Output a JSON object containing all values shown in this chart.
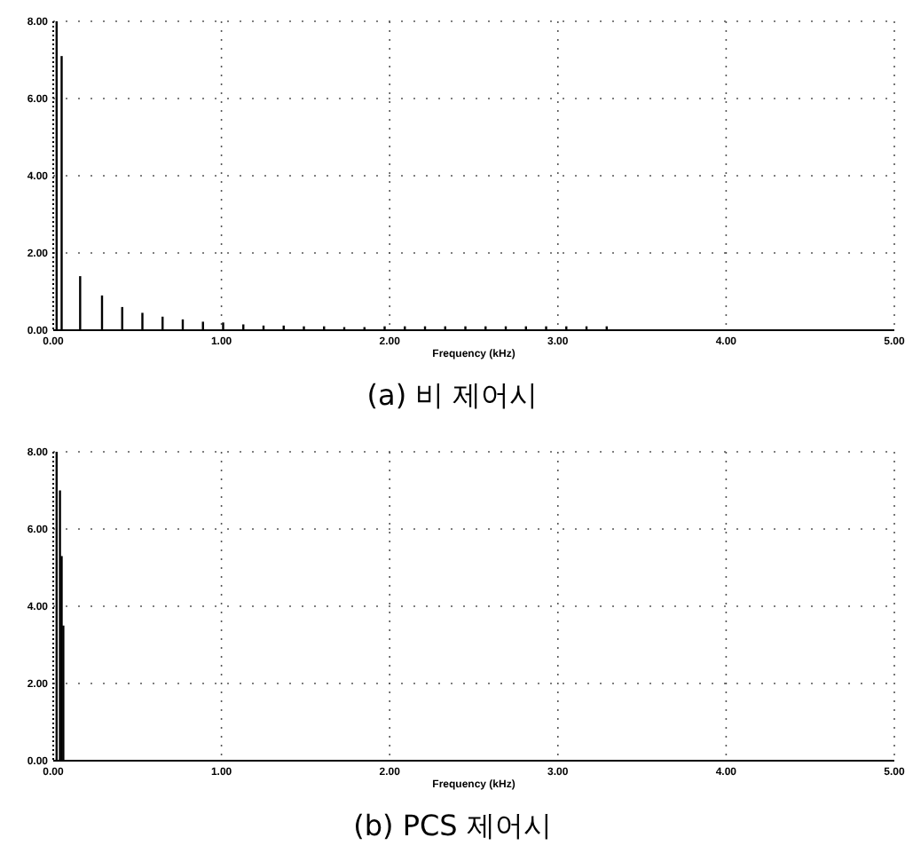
{
  "chart_data": [
    {
      "type": "bar",
      "title": "(a) 비 제어시",
      "xlabel": "Frequency (kHz)",
      "grid": true,
      "xlim": [
        0,
        5
      ],
      "ylim": [
        0,
        8
      ],
      "xticks": [
        {
          "value": 0,
          "label": "0.00"
        },
        {
          "value": 1,
          "label": "1.00"
        },
        {
          "value": 2,
          "label": "2.00"
        },
        {
          "value": 3,
          "label": "3.00"
        },
        {
          "value": 4,
          "label": "4.00"
        },
        {
          "value": 5,
          "label": "5.00"
        }
      ],
      "yticks": [
        {
          "value": 0,
          "label": "0.00"
        },
        {
          "value": 2,
          "label": "2.00"
        },
        {
          "value": 4,
          "label": "4.00"
        },
        {
          "value": 6,
          "label": "6.00"
        },
        {
          "value": 8,
          "label": "8.00"
        }
      ],
      "series": [
        {
          "color": "#000000",
          "x": [
            0.02,
            0.05,
            0.16,
            0.29,
            0.41,
            0.53,
            0.65,
            0.77,
            0.89,
            1.01,
            1.13,
            1.25,
            1.37,
            1.49,
            1.61,
            1.73,
            1.85,
            1.97,
            2.09,
            2.21,
            2.33,
            2.45,
            2.57,
            2.69,
            2.81,
            2.93,
            3.05,
            3.17,
            3.29
          ],
          "values": [
            8.0,
            7.1,
            1.4,
            0.9,
            0.6,
            0.45,
            0.35,
            0.28,
            0.22,
            0.2,
            0.15,
            0.12,
            0.12,
            0.1,
            0.1,
            0.08,
            0.08,
            0.1,
            0.1,
            0.1,
            0.1,
            0.1,
            0.1,
            0.1,
            0.1,
            0.1,
            0.1,
            0.1,
            0.1
          ]
        }
      ]
    },
    {
      "type": "bar",
      "title": "(b) PCS 제어시",
      "xlabel": "Frequency (kHz)",
      "grid": true,
      "xlim": [
        0,
        5
      ],
      "ylim": [
        0,
        8
      ],
      "xticks": [
        {
          "value": 0,
          "label": "0.00"
        },
        {
          "value": 1,
          "label": "1.00"
        },
        {
          "value": 2,
          "label": "2.00"
        },
        {
          "value": 3,
          "label": "3.00"
        },
        {
          "value": 4,
          "label": "4.00"
        },
        {
          "value": 5,
          "label": "5.00"
        }
      ],
      "yticks": [
        {
          "value": 0,
          "label": "0.00"
        },
        {
          "value": 2,
          "label": "2.00"
        },
        {
          "value": 4,
          "label": "4.00"
        },
        {
          "value": 6,
          "label": "6.00"
        },
        {
          "value": 8,
          "label": "8.00"
        }
      ],
      "series": [
        {
          "color": "#000000",
          "x": [
            0.02,
            0.04,
            0.05,
            0.06
          ],
          "values": [
            8.0,
            7.0,
            5.3,
            3.5
          ]
        }
      ]
    }
  ]
}
